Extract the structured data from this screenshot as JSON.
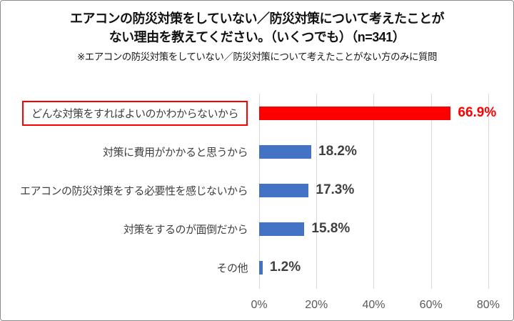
{
  "title": {
    "line1": "エアコンの防災対策をしていない／防災対策について考えたことが",
    "line2": "ない理由を教えてください。（いくつでも）（n=341）",
    "note": "※エアコンの防災対策をしていない／防災対策について考えたことがない方のみに質問"
  },
  "chart_data": {
    "type": "bar",
    "orientation": "horizontal",
    "title": "エアコンの防災対策をしていない／防災対策について考えたことがない理由を教えてください。（いくつでも）（n=341）",
    "subtitle": "※エアコンの防災対策をしていない／防災対策について考えたことがない方のみに質問",
    "sample_size_label": "n=341",
    "categories": [
      "どんな対策をすればよいのかわからないから",
      "対策に費用がかかると思うから",
      "エアコンの防災対策をする必要性を感じないから",
      "対策をするのが面倒だから",
      "その他"
    ],
    "values": [
      66.9,
      18.2,
      17.3,
      15.8,
      1.2
    ],
    "value_labels": [
      "66.9%",
      "18.2%",
      "17.3%",
      "15.8%",
      "1.2%"
    ],
    "highlighted_index": 0,
    "x_ticks": [
      "0%",
      "20%",
      "40%",
      "60%",
      "80%"
    ],
    "x_tick_values": [
      0,
      20,
      40,
      60,
      80
    ],
    "xlim": [
      0,
      85.5
    ],
    "grid": true,
    "legend": false,
    "colors": {
      "highlight_bar": "#fe0000",
      "bar": "#4472c4",
      "highlight_value_text": "#fe0000",
      "value_text": "#404040",
      "category_text": "#3f3f3f",
      "gridline": "#d9d9d9",
      "highlight_box_border": "#fe0000"
    }
  }
}
